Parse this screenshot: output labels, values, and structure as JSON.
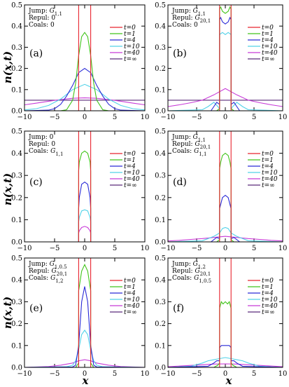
{
  "figure": {
    "ylabel": "n(x,t)",
    "xlabel": "x",
    "legend_entries": [
      "t=0",
      "t=1",
      "t=4",
      "t=10",
      "t=40",
      "t=∞"
    ],
    "series_colors": [
      "#e8242e",
      "#41c41a",
      "#2a2ad6",
      "#52d2e8",
      "#c83ad8",
      "#5a2a7a"
    ]
  },
  "chart_data": [
    {
      "type": "line",
      "panel_label": "(a)",
      "annotation": [
        "Jump: G1,1",
        "Repul: 0",
        "Coals: 0"
      ],
      "xlim": [
        -10,
        10
      ],
      "ylim": [
        0,
        0.5
      ],
      "xticks": [
        -10,
        -5,
        0,
        5,
        10
      ],
      "yticks": [
        0,
        0.1,
        0.2,
        0.3,
        0.4,
        0.5
      ],
      "series": [
        {
          "name": "t=0",
          "x": [
            -10,
            -1,
            -1,
            1,
            1,
            10
          ],
          "y": [
            0,
            0,
            0.5,
            0.5,
            0,
            0
          ]
        },
        {
          "name": "t=1",
          "x": [
            -10,
            -4,
            -3,
            -2,
            -1.5,
            -1,
            -0.5,
            0,
            0.5,
            1,
            1.5,
            2,
            3,
            4,
            10
          ],
          "y": [
            0,
            0,
            0.005,
            0.05,
            0.13,
            0.26,
            0.35,
            0.37,
            0.35,
            0.26,
            0.13,
            0.05,
            0.005,
            0,
            0
          ]
        },
        {
          "name": "t=4",
          "x": [
            -10,
            -6,
            -5,
            -4,
            -3,
            -2,
            -1,
            0,
            1,
            2,
            3,
            4,
            5,
            6,
            10
          ],
          "y": [
            0,
            0.003,
            0.01,
            0.03,
            0.07,
            0.12,
            0.18,
            0.2,
            0.18,
            0.12,
            0.07,
            0.03,
            0.01,
            0.003,
            0
          ]
        },
        {
          "name": "t=10",
          "x": [
            -10,
            -8,
            -6,
            -4,
            -2,
            0,
            2,
            4,
            6,
            8,
            10
          ],
          "y": [
            0.004,
            0.01,
            0.025,
            0.055,
            0.1,
            0.125,
            0.1,
            0.055,
            0.025,
            0.01,
            0.004
          ]
        },
        {
          "name": "t=40",
          "x": [
            -10,
            -8,
            -6,
            -4,
            -2,
            0,
            2,
            4,
            6,
            8,
            10
          ],
          "y": [
            0.028,
            0.036,
            0.045,
            0.053,
            0.059,
            0.061,
            0.059,
            0.053,
            0.045,
            0.036,
            0.028
          ]
        },
        {
          "name": "t=∞",
          "x": [
            -10,
            10
          ],
          "y": [
            0.05,
            0.05
          ]
        }
      ]
    },
    {
      "type": "line",
      "panel_label": "(b)",
      "annotation": [
        "Jump: G1,1",
        "Repul: G20,1",
        "Coals: 0"
      ],
      "xlim": [
        -10,
        10
      ],
      "ylim": [
        0,
        0.5
      ],
      "xticks": [
        -10,
        -5,
        0,
        5,
        10
      ],
      "yticks": [
        0,
        0.1,
        0.2,
        0.3,
        0.4,
        0.5
      ],
      "series": [
        {
          "name": "t=0",
          "x": [
            -10,
            -1,
            -1,
            1,
            1,
            10
          ],
          "y": [
            0,
            0,
            0.5,
            0.5,
            0,
            0
          ]
        },
        {
          "name": "t=1",
          "x": [
            -10,
            -1.5,
            -1,
            -1,
            -0.8,
            -0.5,
            0,
            0.5,
            0.8,
            1,
            1,
            1.5,
            10
          ],
          "y": [
            0,
            0,
            0.01,
            0.48,
            0.49,
            0.47,
            0.46,
            0.47,
            0.49,
            0.48,
            0.01,
            0,
            0
          ]
        },
        {
          "name": "t=4",
          "x": [
            -10,
            -2.5,
            -2,
            -1.5,
            -1,
            -1,
            -0.8,
            -0.5,
            0,
            0.5,
            0.8,
            1,
            1,
            1.5,
            2,
            2.5,
            10
          ],
          "y": [
            0,
            0,
            0.02,
            0.04,
            0.03,
            0.43,
            0.44,
            0.42,
            0.41,
            0.42,
            0.44,
            0.43,
            0.03,
            0.04,
            0.02,
            0,
            0
          ]
        },
        {
          "name": "t=10",
          "x": [
            -10,
            -4,
            -3,
            -2,
            -1.3,
            -1,
            -1,
            -0.5,
            0,
            0.5,
            1,
            1,
            1.3,
            2,
            3,
            4,
            10
          ],
          "y": [
            0,
            0.005,
            0.02,
            0.04,
            0.02,
            0.01,
            0.36,
            0.37,
            0.36,
            0.37,
            0.36,
            0.01,
            0.02,
            0.04,
            0.02,
            0.005,
            0
          ]
        },
        {
          "name": "t=40",
          "x": [
            -10,
            -8,
            -6,
            -4,
            -2,
            0,
            2,
            4,
            6,
            8,
            10
          ],
          "y": [
            0.02,
            0.028,
            0.038,
            0.05,
            0.075,
            0.105,
            0.075,
            0.05,
            0.038,
            0.028,
            0.02
          ]
        },
        {
          "name": "t=∞",
          "x": [
            -10,
            10
          ],
          "y": [
            0.05,
            0.05
          ]
        }
      ]
    },
    {
      "type": "line",
      "panel_label": "(c)",
      "annotation": [
        "Jump: 0",
        "Repul: 0",
        "Coals: G1,1"
      ],
      "xlim": [
        -10,
        10
      ],
      "ylim": [
        0,
        0.5
      ],
      "xticks": [
        -10,
        -5,
        0,
        5,
        10
      ],
      "yticks": [
        0,
        0.1,
        0.2,
        0.3,
        0.4,
        0.5
      ],
      "series": [
        {
          "name": "t=0",
          "x": [
            -10,
            -1,
            -1,
            1,
            1,
            10
          ],
          "y": [
            0,
            0,
            0.5,
            0.5,
            0,
            0
          ]
        },
        {
          "name": "t=1",
          "x": [
            -10,
            -1,
            -1,
            -0.9,
            -0.5,
            0,
            0.5,
            0.9,
            1,
            1,
            10
          ],
          "y": [
            0,
            0,
            0.32,
            0.36,
            0.4,
            0.41,
            0.4,
            0.36,
            0.32,
            0,
            0
          ]
        },
        {
          "name": "t=4",
          "x": [
            -10,
            -1,
            -1,
            -0.9,
            -0.5,
            0,
            0.5,
            0.9,
            1,
            1,
            10
          ],
          "y": [
            0,
            0,
            0.15,
            0.2,
            0.26,
            0.27,
            0.26,
            0.2,
            0.15,
            0,
            0
          ]
        },
        {
          "name": "t=10",
          "x": [
            -10,
            -1,
            -1,
            -0.9,
            -0.5,
            0,
            0.5,
            0.9,
            1,
            1,
            10
          ],
          "y": [
            0,
            0,
            0.09,
            0.11,
            0.14,
            0.145,
            0.14,
            0.11,
            0.09,
            0,
            0
          ]
        },
        {
          "name": "t=40",
          "x": [
            -10,
            -1,
            -1,
            -0.9,
            -0.5,
            0,
            0.5,
            0.9,
            1,
            1,
            10
          ],
          "y": [
            0,
            0,
            0.04,
            0.05,
            0.065,
            0.07,
            0.065,
            0.05,
            0.04,
            0,
            0
          ]
        },
        {
          "name": "t=∞",
          "x": [
            -10,
            10
          ],
          "y": [
            0,
            0
          ]
        }
      ]
    },
    {
      "type": "line",
      "panel_label": "(d)",
      "annotation": [
        "Jump: G1,1",
        "Repul: G20,1",
        "Coals: G1,1"
      ],
      "xlim": [
        -10,
        10
      ],
      "ylim": [
        0,
        0.5
      ],
      "xticks": [
        -10,
        -5,
        0,
        5,
        10
      ],
      "yticks": [
        0,
        0.1,
        0.2,
        0.3,
        0.4,
        0.5
      ],
      "series": [
        {
          "name": "t=0",
          "x": [
            -10,
            -1,
            -1,
            1,
            1,
            10
          ],
          "y": [
            0,
            0,
            0.5,
            0.5,
            0,
            0
          ]
        },
        {
          "name": "t=1",
          "x": [
            -10,
            -1.5,
            -1,
            -1,
            -0.8,
            -0.5,
            0,
            0.5,
            0.8,
            1,
            1,
            1.5,
            10
          ],
          "y": [
            0,
            0,
            0.01,
            0.33,
            0.36,
            0.39,
            0.4,
            0.39,
            0.36,
            0.33,
            0.01,
            0,
            0
          ]
        },
        {
          "name": "t=4",
          "x": [
            -10,
            -2.5,
            -2,
            -1.5,
            -1,
            -1,
            -0.5,
            0,
            0.5,
            1,
            1,
            1.5,
            2,
            2.5,
            10
          ],
          "y": [
            0,
            0,
            0.01,
            0.02,
            0.015,
            0.15,
            0.2,
            0.21,
            0.2,
            0.15,
            0.015,
            0.02,
            0.01,
            0,
            0
          ]
        },
        {
          "name": "t=10",
          "x": [
            -10,
            -4,
            -3,
            -2,
            -1,
            -0.5,
            0,
            0.5,
            1,
            2,
            3,
            4,
            10
          ],
          "y": [
            0,
            0.005,
            0.015,
            0.025,
            0.04,
            0.06,
            0.065,
            0.06,
            0.04,
            0.025,
            0.015,
            0.005,
            0
          ]
        },
        {
          "name": "t=40",
          "x": [
            -10,
            -8,
            -6,
            -4,
            -2,
            0,
            2,
            4,
            6,
            8,
            10
          ],
          "y": [
            0.004,
            0.007,
            0.011,
            0.015,
            0.02,
            0.025,
            0.02,
            0.015,
            0.011,
            0.007,
            0.004
          ]
        },
        {
          "name": "t=∞",
          "x": [
            -10,
            10
          ],
          "y": [
            0,
            0
          ]
        }
      ]
    },
    {
      "type": "line",
      "panel_label": "(e)",
      "annotation": [
        "Jump: G1,0.5",
        "Repul: G20,1",
        "Coals: G1,2"
      ],
      "xlim": [
        -10,
        10
      ],
      "ylim": [
        0,
        0.5
      ],
      "xticks": [
        -10,
        -5,
        0,
        5,
        10
      ],
      "yticks": [
        0,
        0.1,
        0.2,
        0.3,
        0.4,
        0.5
      ],
      "series": [
        {
          "name": "t=0",
          "x": [
            -10,
            -1,
            -1,
            1,
            1,
            10
          ],
          "y": [
            0,
            0,
            0.5,
            0.5,
            0,
            0
          ]
        },
        {
          "name": "t=1",
          "x": [
            -10,
            -1.5,
            -1,
            -1,
            -0.5,
            0,
            0.5,
            1,
            1,
            1.5,
            10
          ],
          "y": [
            0,
            0,
            0.02,
            0.35,
            0.44,
            0.47,
            0.44,
            0.35,
            0.02,
            0,
            0
          ]
        },
        {
          "name": "t=4",
          "x": [
            -10,
            -2,
            -1.5,
            -1,
            -0.5,
            0,
            0.5,
            1,
            1.5,
            2,
            10
          ],
          "y": [
            0,
            0.002,
            0.01,
            0.1,
            0.3,
            0.37,
            0.3,
            0.1,
            0.01,
            0.002,
            0
          ]
        },
        {
          "name": "t=10",
          "x": [
            -10,
            -3,
            -2,
            -1.5,
            -1,
            -0.5,
            0,
            0.5,
            1,
            1.5,
            2,
            3,
            10
          ],
          "y": [
            0,
            0.003,
            0.01,
            0.03,
            0.08,
            0.15,
            0.17,
            0.15,
            0.08,
            0.03,
            0.01,
            0.003,
            0
          ]
        },
        {
          "name": "t=40",
          "x": [
            -10,
            -6,
            -4,
            -2,
            -1,
            0,
            1,
            2,
            4,
            6,
            10
          ],
          "y": [
            0,
            0.004,
            0.01,
            0.02,
            0.03,
            0.035,
            0.03,
            0.02,
            0.01,
            0.004,
            0
          ]
        },
        {
          "name": "t=∞",
          "x": [
            -10,
            10
          ],
          "y": [
            0,
            0
          ]
        }
      ]
    },
    {
      "type": "line",
      "panel_label": "(f)",
      "annotation": [
        "Jump: G1,2",
        "Repul: G20,1",
        "Coals: G1,0.5"
      ],
      "xlim": [
        -10,
        10
      ],
      "ylim": [
        0,
        0.5
      ],
      "xticks": [
        -10,
        -5,
        0,
        5,
        10
      ],
      "yticks": [
        0,
        0.1,
        0.2,
        0.3,
        0.4,
        0.5
      ],
      "series": [
        {
          "name": "t=0",
          "x": [
            -10,
            -1,
            -1,
            1,
            1,
            10
          ],
          "y": [
            0,
            0,
            0.5,
            0.5,
            0,
            0
          ]
        },
        {
          "name": "t=1",
          "x": [
            -10,
            -2,
            -1.3,
            -1,
            -1,
            -0.7,
            -0.4,
            0,
            0.4,
            0.7,
            1,
            1,
            1.3,
            2,
            10
          ],
          "y": [
            0,
            0,
            0.01,
            0.02,
            0.27,
            0.3,
            0.29,
            0.3,
            0.29,
            0.3,
            0.27,
            0.02,
            0.01,
            0,
            0
          ]
        },
        {
          "name": "t=4",
          "x": [
            -10,
            -3,
            -2,
            -1.5,
            -1,
            -1,
            -0.7,
            0,
            0.7,
            1,
            1,
            1.5,
            2,
            3,
            10
          ],
          "y": [
            0,
            0.005,
            0.02,
            0.03,
            0.03,
            0.09,
            0.1,
            0.1,
            0.1,
            0.09,
            0.03,
            0.03,
            0.02,
            0.005,
            0
          ]
        },
        {
          "name": "t=10",
          "x": [
            -10,
            -6,
            -4,
            -3,
            -2,
            -1,
            0,
            1,
            2,
            3,
            4,
            6,
            10
          ],
          "y": [
            0,
            0.005,
            0.02,
            0.03,
            0.035,
            0.04,
            0.045,
            0.04,
            0.035,
            0.03,
            0.02,
            0.005,
            0
          ]
        },
        {
          "name": "t=40",
          "x": [
            -10,
            -8,
            -6,
            -4,
            -2,
            0,
            2,
            4,
            6,
            8,
            10
          ],
          "y": [
            0.003,
            0.006,
            0.009,
            0.012,
            0.015,
            0.016,
            0.015,
            0.012,
            0.009,
            0.006,
            0.003
          ]
        },
        {
          "name": "t=∞",
          "x": [
            -10,
            10
          ],
          "y": [
            0,
            0
          ]
        }
      ]
    }
  ]
}
